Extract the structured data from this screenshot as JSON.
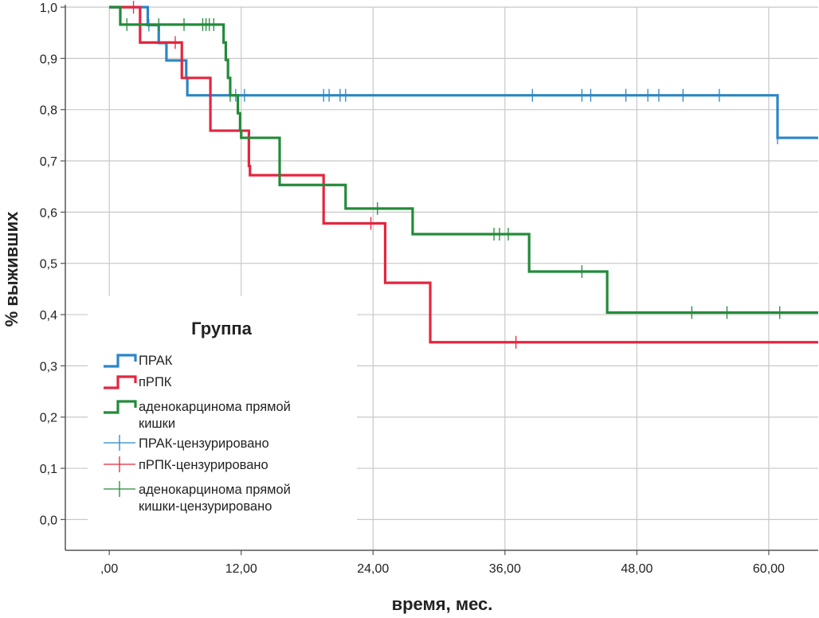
{
  "chart_data": {
    "type": "line",
    "subtype": "kaplan-meier",
    "title": "",
    "xlabel": "время, мес.",
    "ylabel": "% выживших",
    "xlim": [
      -4,
      64.5
    ],
    "ylim": [
      -0.06,
      1.0
    ],
    "x_ticks": [
      {
        "value": 0,
        "label": ",00"
      },
      {
        "value": 12,
        "label": "12,00"
      },
      {
        "value": 24,
        "label": "24,00"
      },
      {
        "value": 36,
        "label": "36,00"
      },
      {
        "value": 48,
        "label": "48,00"
      },
      {
        "value": 60,
        "label": "60,00"
      }
    ],
    "y_ticks": [
      {
        "value": 0.0,
        "label": "0,0"
      },
      {
        "value": 0.1,
        "label": "0,1"
      },
      {
        "value": 0.2,
        "label": "0,2"
      },
      {
        "value": 0.3,
        "label": "0,3"
      },
      {
        "value": 0.4,
        "label": "0,4"
      },
      {
        "value": 0.5,
        "label": "0,5"
      },
      {
        "value": 0.6,
        "label": "0,6"
      },
      {
        "value": 0.7,
        "label": "0,7"
      },
      {
        "value": 0.8,
        "label": "0,8"
      },
      {
        "value": 0.9,
        "label": "0,9"
      },
      {
        "value": 1.0,
        "label": "1,0"
      }
    ],
    "grid": true,
    "legend": {
      "title": "Группа",
      "position": "lower-left",
      "entries": [
        {
          "label": "ПРАК",
          "kind": "step",
          "color": "#2b86c5"
        },
        {
          "label": "пРПК",
          "kind": "step",
          "color": "#e4263f"
        },
        {
          "label": "аденокарцинома прямой кишки",
          "kind": "step",
          "color": "#238b3a"
        },
        {
          "label": "ПРАК-цензурировано",
          "kind": "censor",
          "color": "#2b86c5"
        },
        {
          "label": "пРПК-цензурировано",
          "kind": "censor",
          "color": "#e4263f"
        },
        {
          "label": "аденокарцинома прямой кишки-цензурировано",
          "kind": "censor",
          "color": "#238b3a"
        }
      ]
    },
    "series": [
      {
        "name": "ПРАК",
        "color": "#2b86c5",
        "steps": [
          [
            0,
            1.0
          ],
          [
            3.5,
            0.965
          ],
          [
            4.5,
            0.93
          ],
          [
            5.2,
            0.896
          ],
          [
            7.0,
            0.862
          ],
          [
            7.1,
            0.828
          ],
          [
            60.8,
            0.828
          ],
          [
            60.8,
            0.745
          ],
          [
            64.5,
            0.745
          ]
        ],
        "censored": [
          [
            3.6,
            0.965
          ],
          [
            11.5,
            0.828
          ],
          [
            12.3,
            0.828
          ],
          [
            19.5,
            0.828
          ],
          [
            20.0,
            0.828
          ],
          [
            21.0,
            0.828
          ],
          [
            21.5,
            0.828
          ],
          [
            38.5,
            0.828
          ],
          [
            43.0,
            0.828
          ],
          [
            43.8,
            0.828
          ],
          [
            47.0,
            0.828
          ],
          [
            49.0,
            0.828
          ],
          [
            50.0,
            0.828
          ],
          [
            52.2,
            0.828
          ],
          [
            55.5,
            0.828
          ],
          [
            60.8,
            0.745
          ]
        ]
      },
      {
        "name": "пРПК",
        "color": "#e4263f",
        "steps": [
          [
            0,
            1.0
          ],
          [
            2.8,
            0.931
          ],
          [
            6.6,
            0.862
          ],
          [
            9.2,
            0.759
          ],
          [
            12.7,
            0.69
          ],
          [
            12.8,
            0.672
          ],
          [
            19.4,
            0.672
          ],
          [
            19.5,
            0.578
          ],
          [
            25.0,
            0.578
          ],
          [
            25.1,
            0.462
          ],
          [
            29.1,
            0.462
          ],
          [
            29.2,
            0.346
          ],
          [
            64.5,
            0.346
          ]
        ],
        "censored": [
          [
            2.2,
            1.0
          ],
          [
            6.0,
            0.931
          ],
          [
            15.5,
            0.672
          ],
          [
            23.8,
            0.578
          ],
          [
            37.0,
            0.346
          ]
        ]
      },
      {
        "name": "аденокарцинома прямой кишки",
        "color": "#238b3a",
        "steps": [
          [
            0,
            1.0
          ],
          [
            1.0,
            0.966
          ],
          [
            10.3,
            0.966
          ],
          [
            10.4,
            0.931
          ],
          [
            10.6,
            0.897
          ],
          [
            10.8,
            0.862
          ],
          [
            11.0,
            0.828
          ],
          [
            11.6,
            0.828
          ],
          [
            11.7,
            0.793
          ],
          [
            11.9,
            0.759
          ],
          [
            12.0,
            0.745
          ],
          [
            15.4,
            0.745
          ],
          [
            15.5,
            0.653
          ],
          [
            21.4,
            0.653
          ],
          [
            21.5,
            0.607
          ],
          [
            27.5,
            0.607
          ],
          [
            27.6,
            0.557
          ],
          [
            38.1,
            0.557
          ],
          [
            38.2,
            0.484
          ],
          [
            45.2,
            0.484
          ],
          [
            45.3,
            0.404
          ],
          [
            64.5,
            0.404
          ]
        ],
        "censored": [
          [
            1.6,
            0.966
          ],
          [
            4.5,
            0.966
          ],
          [
            6.8,
            0.966
          ],
          [
            8.5,
            0.966
          ],
          [
            8.8,
            0.966
          ],
          [
            9.1,
            0.966
          ],
          [
            9.5,
            0.966
          ],
          [
            11.0,
            0.828
          ],
          [
            24.4,
            0.607
          ],
          [
            35.0,
            0.557
          ],
          [
            35.5,
            0.557
          ],
          [
            36.3,
            0.557
          ],
          [
            43.0,
            0.484
          ],
          [
            53.0,
            0.404
          ],
          [
            56.2,
            0.404
          ],
          [
            61.0,
            0.404
          ]
        ]
      }
    ]
  }
}
